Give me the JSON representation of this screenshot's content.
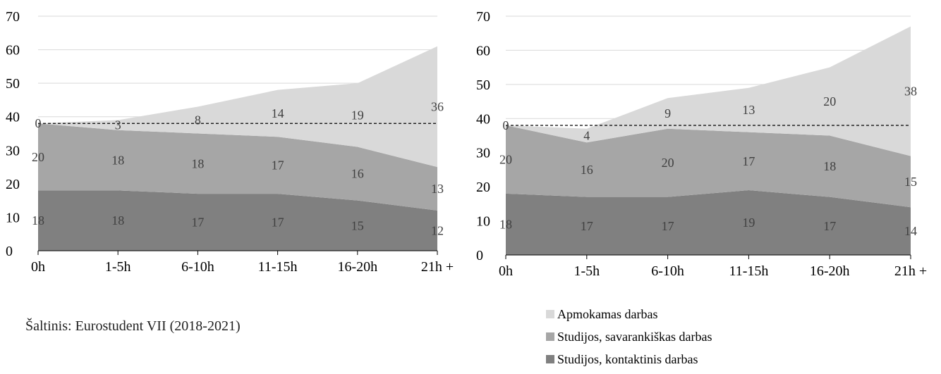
{
  "colors": {
    "apmokamas": "#d9d9d9",
    "savarankiskas": "#a6a6a6",
    "kontaktinis": "#808080",
    "label": "#404040",
    "dashed": "#000000",
    "grid": "#d9d9d9"
  },
  "source_text": "Šaltinis: Eurostudent VII (2018-2021)",
  "legend": {
    "items": [
      {
        "label": "Apmokamas darbas"
      },
      {
        "label": "Studijos, savarankiškas darbas"
      },
      {
        "label": "Studijos, kontaktinis darbas"
      }
    ]
  },
  "chart_data": [
    {
      "type": "area",
      "stacked": true,
      "categories": [
        "0h",
        "1-5h",
        "6-10h",
        "11-15h",
        "16-20h",
        "21h +"
      ],
      "ylim": [
        0,
        70
      ],
      "yticks": [
        0,
        10,
        20,
        30,
        40,
        50,
        60,
        70
      ],
      "grid": true,
      "reference_line": 38,
      "series": [
        {
          "name": "Studijos, kontaktinis darbas",
          "values": [
            18,
            18,
            17,
            17,
            15,
            12
          ]
        },
        {
          "name": "Studijos, savarankiškas darbas",
          "values": [
            20,
            18,
            18,
            17,
            16,
            13
          ]
        },
        {
          "name": "Apmokamas darbas",
          "values": [
            0,
            3,
            8,
            14,
            19,
            36
          ]
        }
      ]
    },
    {
      "type": "area",
      "stacked": true,
      "categories": [
        "0h",
        "1-5h",
        "6-10h",
        "11-15h",
        "16-20h",
        "21h +"
      ],
      "ylim": [
        0,
        70
      ],
      "yticks": [
        0,
        10,
        20,
        30,
        40,
        50,
        60,
        70
      ],
      "grid": true,
      "reference_line": 38,
      "series": [
        {
          "name": "Studijos, kontaktinis darbas",
          "values": [
            18,
            17,
            17,
            19,
            17,
            14
          ]
        },
        {
          "name": "Studijos, savarankiškas darbas",
          "values": [
            20,
            16,
            20,
            17,
            18,
            15
          ]
        },
        {
          "name": "Apmokamas darbas",
          "values": [
            0,
            4,
            9,
            13,
            20,
            38
          ]
        }
      ]
    }
  ]
}
